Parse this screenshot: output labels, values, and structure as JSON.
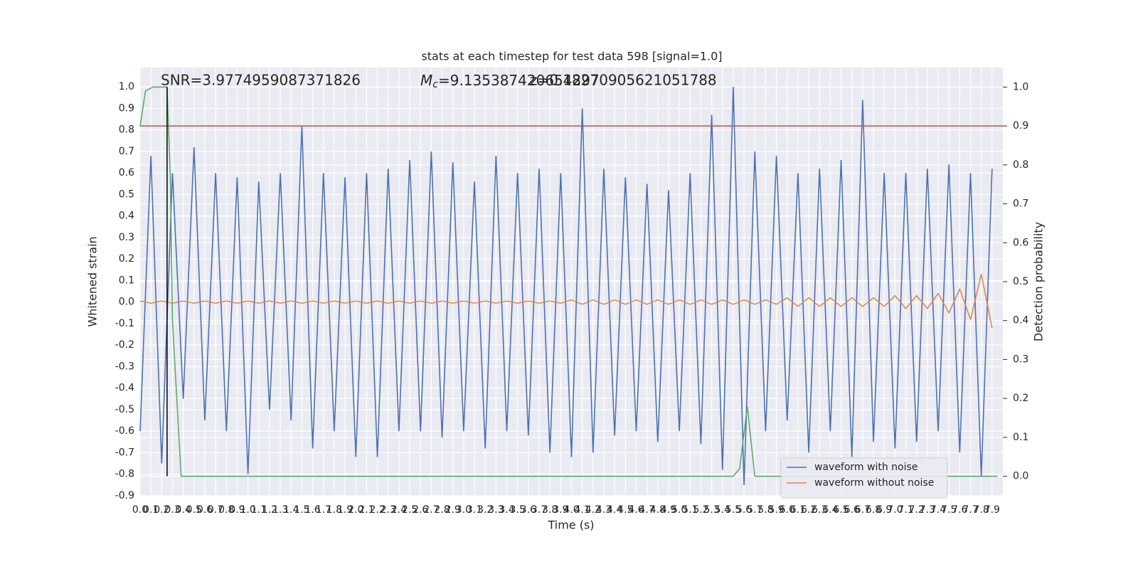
{
  "chart_data": {
    "type": "line",
    "title": "stats at each timestep for test data 598 [signal=1.0]",
    "xlabel": "Time (s)",
    "ylabel": "Whitened strain",
    "y2label": "Detection probability",
    "annotations": {
      "snr": "SNR=3.9774959087371826",
      "mc_symbol": "M",
      "mc_subscript": "c",
      "mc_value": "=9.135387420654297",
      "z": "z=0.18270905621051788"
    },
    "xlim": [
      0,
      8.0
    ],
    "ylim": [
      -0.9,
      1.09
    ],
    "y2lim": [
      -0.05,
      1.05
    ],
    "xticks": [
      {
        "value": 0,
        "label": "0.0"
      },
      0.1,
      0.2,
      0.3,
      0.4,
      0.5,
      0.6,
      0.7,
      0.8,
      0.9,
      {
        "value": 1,
        "label": "1.0"
      },
      1.1,
      1.2,
      1.3,
      1.4,
      1.5,
      1.6,
      1.7,
      1.8,
      1.9,
      {
        "value": 2,
        "label": "2.0"
      },
      2.1,
      2.2,
      2.3,
      2.4,
      2.5,
      2.6,
      2.7,
      2.8,
      2.9,
      {
        "value": 3,
        "label": "3.0"
      },
      3.1,
      3.2,
      3.3,
      3.4,
      3.5,
      3.6,
      3.7,
      3.8,
      3.9,
      {
        "value": 4,
        "label": "4.0"
      },
      4.1,
      4.2,
      4.3,
      4.4,
      4.5,
      4.6,
      4.7,
      4.8,
      4.9,
      {
        "value": 5,
        "label": "5.0"
      },
      5.1,
      5.2,
      5.3,
      5.4,
      5.5,
      5.6,
      5.7,
      5.8,
      5.9,
      {
        "value": 6,
        "label": "6.0"
      },
      6.1,
      6.2,
      6.3,
      6.4,
      6.5,
      6.6,
      6.7,
      6.8,
      6.9,
      {
        "value": 7,
        "label": "7.0"
      },
      7.1,
      7.2,
      7.3,
      7.4,
      7.5,
      7.6,
      7.7,
      7.8,
      7.9
    ],
    "yticks": [
      -0.9,
      -0.8,
      -0.7,
      -0.6,
      -0.5,
      -0.4,
      -0.3,
      -0.2,
      -0.1,
      {
        "value": 0,
        "label": "0.0"
      },
      0.1,
      0.2,
      0.3,
      0.4,
      0.5,
      0.6,
      0.7,
      0.8,
      0.9,
      {
        "value": 1,
        "label": "1.0"
      }
    ],
    "y2ticks": [
      {
        "value": 0,
        "label": "0.0"
      },
      0.1,
      0.2,
      0.3,
      0.4,
      0.5,
      0.6,
      0.7,
      0.8,
      0.9,
      {
        "value": 1,
        "label": "1.0"
      }
    ],
    "grid": true,
    "legend": "lower right",
    "threshold": 0.9,
    "threshold_color": "#c44e52",
    "marker_x": 0.25,
    "marker_color": "#000000",
    "series": [
      {
        "name": "waveform with noise",
        "color": "#4c72b0",
        "x": [
          0,
          0.1,
          0.2,
          0.3,
          0.4,
          0.5,
          0.6,
          0.7,
          0.8,
          0.9,
          1,
          1.1,
          1.2,
          1.3,
          1.4,
          1.5,
          1.6,
          1.7,
          1.8,
          1.9,
          2,
          2.1,
          2.2,
          2.3,
          2.4,
          2.5,
          2.6,
          2.7,
          2.8,
          2.9,
          3,
          3.1,
          3.2,
          3.3,
          3.4,
          3.5,
          3.6,
          3.7,
          3.8,
          3.9,
          4,
          4.1,
          4.2,
          4.3,
          4.4,
          4.5,
          4.6,
          4.7,
          4.8,
          4.9,
          5,
          5.1,
          5.2,
          5.3,
          5.4,
          5.5,
          5.6,
          5.7,
          5.8,
          5.9,
          6,
          6.1,
          6.2,
          6.3,
          6.4,
          6.5,
          6.6,
          6.7,
          6.8,
          6.9,
          7,
          7.1,
          7.2,
          7.3,
          7.4,
          7.5,
          7.6,
          7.7,
          7.8,
          7.9
        ],
        "values": [
          -0.6,
          0.68,
          -0.75,
          0.6,
          -0.45,
          0.72,
          -0.55,
          0.6,
          -0.6,
          0.58,
          -0.8,
          0.56,
          -0.5,
          0.6,
          -0.55,
          0.82,
          -0.68,
          0.6,
          -0.6,
          0.58,
          -0.72,
          0.6,
          -0.72,
          0.62,
          -0.6,
          0.66,
          -0.6,
          0.7,
          -0.63,
          0.65,
          -0.6,
          0.56,
          -0.68,
          0.68,
          -0.6,
          0.6,
          -0.62,
          0.62,
          -0.7,
          0.6,
          -0.72,
          0.9,
          -0.7,
          0.62,
          -0.62,
          0.58,
          -0.6,
          0.55,
          -0.65,
          0.52,
          -0.6,
          0.6,
          -0.66,
          0.87,
          -0.78,
          1.0,
          -0.85,
          0.7,
          -0.6,
          0.68,
          -0.55,
          0.6,
          -0.7,
          0.62,
          -0.6,
          0.66,
          -0.72,
          0.94,
          -0.65,
          0.6,
          -0.68,
          0.6,
          -0.65,
          0.62,
          -0.6,
          0.64,
          -0.7,
          0.6,
          -0.81,
          0.62
        ]
      },
      {
        "name": "waveform without noise",
        "color": "#dd8452",
        "x": [
          0,
          0.1,
          0.2,
          0.3,
          0.4,
          0.5,
          0.6,
          0.7,
          0.8,
          0.9,
          1,
          1.1,
          1.2,
          1.3,
          1.4,
          1.5,
          1.6,
          1.7,
          1.8,
          1.9,
          2,
          2.1,
          2.2,
          2.3,
          2.4,
          2.5,
          2.6,
          2.7,
          2.8,
          2.9,
          3,
          3.1,
          3.2,
          3.3,
          3.4,
          3.5,
          3.6,
          3.7,
          3.8,
          3.9,
          4,
          4.1,
          4.2,
          4.3,
          4.4,
          4.5,
          4.6,
          4.7,
          4.8,
          4.9,
          5,
          5.1,
          5.2,
          5.3,
          5.4,
          5.5,
          5.6,
          5.7,
          5.8,
          5.9,
          6,
          6.1,
          6.2,
          6.3,
          6.4,
          6.5,
          6.6,
          6.7,
          6.8,
          6.9,
          7,
          7.1,
          7.2,
          7.3,
          7.4,
          7.5,
          7.6,
          7.7,
          7.8,
          7.9
        ],
        "values": [
          0.005,
          -0.005,
          0.005,
          -0.005,
          0.005,
          -0.005,
          0.005,
          -0.005,
          0.005,
          -0.005,
          0.005,
          -0.005,
          0.005,
          -0.005,
          0.005,
          -0.005,
          0.005,
          -0.005,
          0.005,
          -0.005,
          0.005,
          -0.005,
          0.005,
          -0.005,
          0.005,
          -0.005,
          0.005,
          -0.005,
          0.005,
          -0.005,
          0.005,
          -0.005,
          0.005,
          -0.005,
          0.005,
          -0.005,
          0.005,
          -0.005,
          0.005,
          -0.005,
          0.01,
          -0.01,
          0.01,
          -0.01,
          0.01,
          -0.01,
          0.01,
          -0.01,
          0.01,
          -0.01,
          0.01,
          -0.01,
          0.01,
          -0.01,
          0.01,
          -0.01,
          0.01,
          -0.01,
          0.01,
          -0.01,
          0.02,
          -0.02,
          0.02,
          -0.02,
          0.02,
          -0.02,
          0.02,
          -0.02,
          0.02,
          -0.02,
          0.03,
          -0.03,
          0.03,
          -0.03,
          0.04,
          -0.05,
          0.06,
          -0.08,
          0.13,
          -0.12
        ]
      },
      {
        "name": "detection probability",
        "color": "#55a868",
        "axis": "y2",
        "legend": false,
        "x": [
          0,
          0.05,
          0.12,
          0.25,
          0.28,
          0.3,
          0.38,
          5.5,
          5.56,
          5.63,
          5.7,
          7.95
        ],
        "values": [
          0.9,
          0.99,
          1.0,
          1.0,
          0.77,
          0.4,
          0.0,
          0.0,
          0.02,
          0.18,
          0.0,
          0.0
        ]
      }
    ]
  }
}
